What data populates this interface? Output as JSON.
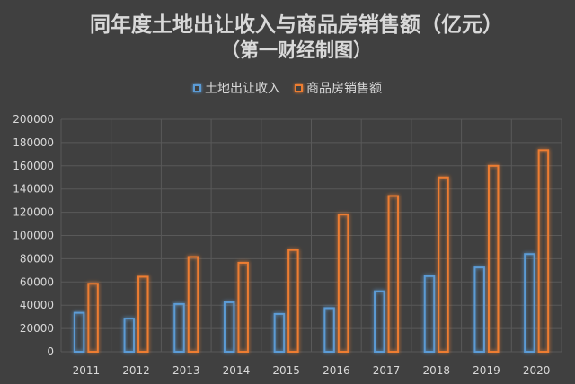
{
  "title_line1": "同年度土地出让收入与商品房销售额（亿元）",
  "title_line2": "（第一财经制图）",
  "colors": {
    "land": "#5b9bd5",
    "sales": "#ed7d31",
    "background": "#404040",
    "grid": "#595959"
  },
  "chart_data": {
    "type": "bar",
    "title": "同年度土地出让收入与商品房销售额（亿元）",
    "subtitle": "（第一财经制图）",
    "categories": [
      "2011",
      "2012",
      "2013",
      "2014",
      "2015",
      "2016",
      "2017",
      "2018",
      "2019",
      "2020"
    ],
    "series": [
      {
        "name": "土地出让收入",
        "values": [
          33500,
          28500,
          41000,
          42500,
          32500,
          37500,
          52000,
          65000,
          72500,
          84000
        ]
      },
      {
        "name": "商品房销售额",
        "values": [
          58500,
          64500,
          81500,
          76500,
          87500,
          118000,
          134000,
          150000,
          160000,
          173500
        ]
      }
    ],
    "ylim": [
      0,
      200000
    ],
    "yticks": [
      "0",
      "20000",
      "40000",
      "60000",
      "80000",
      "100000",
      "120000",
      "140000",
      "160000",
      "180000",
      "200000"
    ],
    "grid": true,
    "legend_position": "top"
  }
}
